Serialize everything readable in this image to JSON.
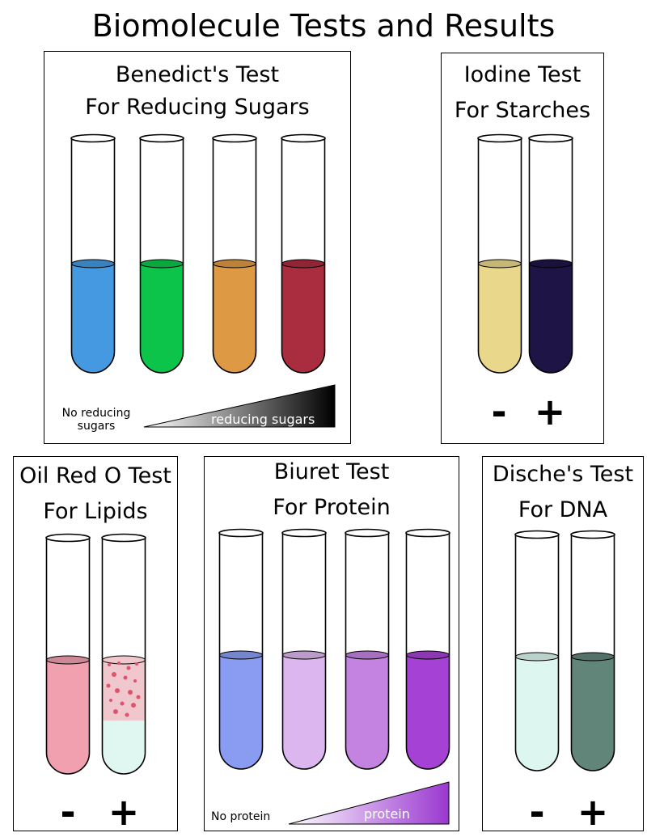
{
  "title": "Biomolecule Tests and Results",
  "benedict": {
    "title_line1": "Benedict's Test",
    "title_line2": "For Reducing Sugars",
    "tube_colors": [
      "#4499e0",
      "#0dc44a",
      "#de9944",
      "#a92d3e"
    ],
    "scale_left_label": "No reducing sugars",
    "scale_right_label": "reducing sugars"
  },
  "iodine": {
    "title_line1": "Iodine Test",
    "title_line2": "For Starches",
    "tube_colors": [
      "#e9d78b",
      "#1e1446"
    ],
    "negative_label": "-",
    "positive_label": "+"
  },
  "oil_red_o": {
    "title_line1": "Oil Red O Test",
    "title_line2": "For Lipids",
    "tube_colors": [
      "#f1a0b0",
      "#dff7f0"
    ],
    "droplet_layer_color": "#efc7cc",
    "droplet_color": "#e0536c",
    "negative_label": "-",
    "positive_label": "+"
  },
  "biuret": {
    "title_line1": "Biuret Test",
    "title_line2": "For Protein",
    "tube_colors": [
      "#8a9cf2",
      "#dcb6ee",
      "#c483e1",
      "#a542d5"
    ],
    "scale_left_label": "No protein",
    "scale_right_label": "protein"
  },
  "dische": {
    "title_line1": "Dische's Test",
    "title_line2": "For DNA",
    "tube_colors": [
      "#ddf6ef",
      "#62857a"
    ],
    "negative_label": "-",
    "positive_label": "+"
  }
}
